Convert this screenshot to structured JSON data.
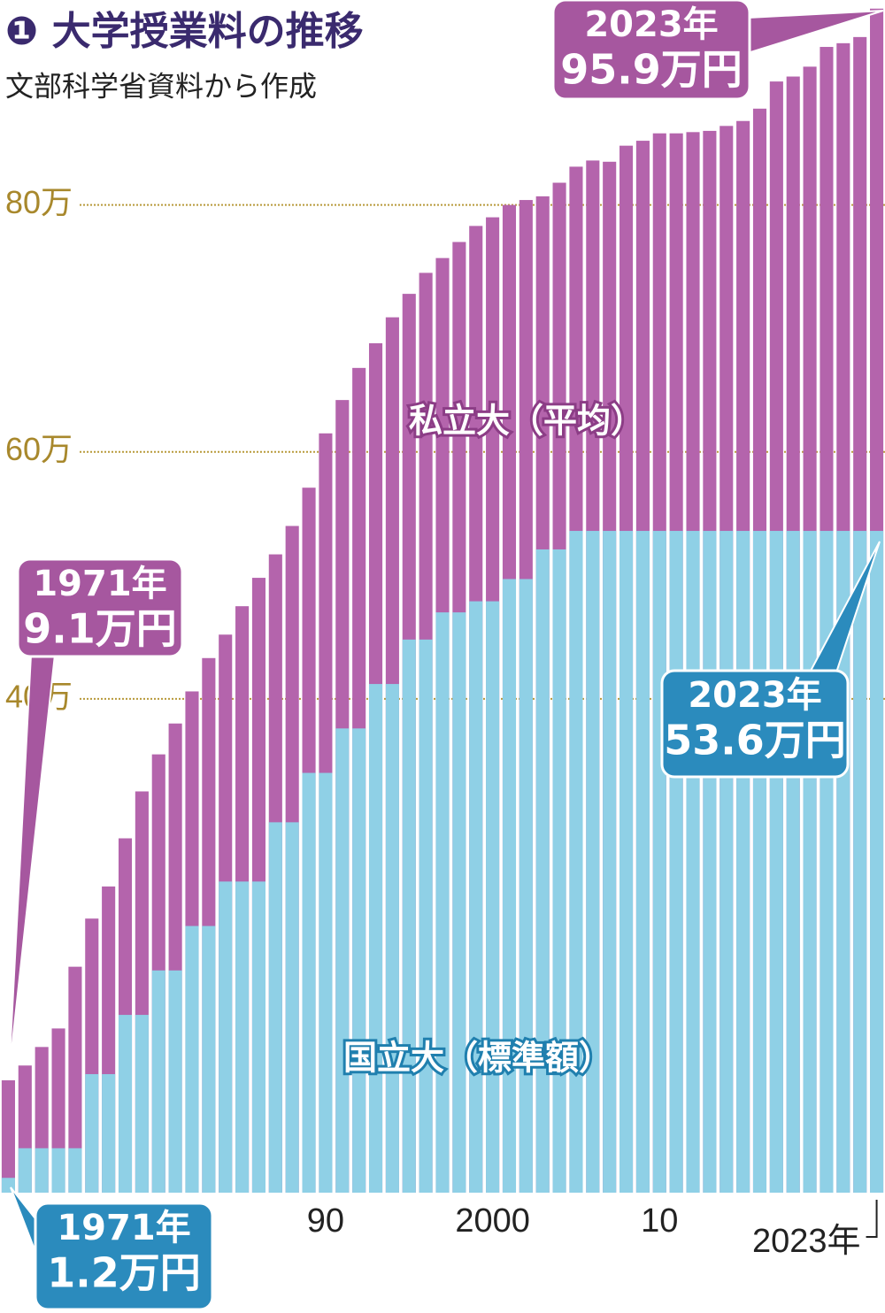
{
  "chart_data": {
    "type": "bar",
    "title": "❶ 大学授業料の推移",
    "subtitle": "文部科学省資料から作成",
    "x": [
      1971,
      1972,
      1973,
      1974,
      1975,
      1976,
      1977,
      1978,
      1979,
      1980,
      1981,
      1982,
      1983,
      1984,
      1985,
      1986,
      1987,
      1988,
      1989,
      1990,
      1991,
      1992,
      1993,
      1994,
      1995,
      1996,
      1997,
      1998,
      1999,
      2000,
      2001,
      2002,
      2003,
      2004,
      2005,
      2006,
      2007,
      2008,
      2009,
      2010,
      2011,
      2012,
      2013,
      2014,
      2015,
      2016,
      2017,
      2018,
      2019,
      2020,
      2021,
      2022,
      2023
    ],
    "series": [
      {
        "name": "私立大（平均）",
        "color": "#b464ac",
        "values": [
          9.1,
          10.3,
          11.8,
          13.3,
          18.3,
          22.2,
          24.8,
          28.7,
          32.5,
          35.5,
          38.0,
          40.6,
          43.3,
          45.2,
          47.5,
          49.8,
          51.7,
          54.0,
          57.1,
          61.5,
          64.2,
          66.8,
          68.8,
          70.9,
          72.8,
          74.5,
          75.7,
          77.0,
          78.3,
          79.0,
          80.0,
          80.4,
          80.7,
          81.8,
          83.1,
          83.6,
          83.5,
          84.8,
          85.2,
          85.8,
          85.8,
          85.9,
          86.0,
          86.4,
          86.8,
          87.8,
          90.0,
          90.4,
          91.2,
          92.8,
          93.1,
          93.6,
          95.9
        ]
      },
      {
        "name": "国立大（標準額）",
        "color": "#8fd0e6",
        "values": [
          1.2,
          3.6,
          3.6,
          3.6,
          3.6,
          9.6,
          9.6,
          14.4,
          14.4,
          18.0,
          18.0,
          21.6,
          21.6,
          25.2,
          25.2,
          25.2,
          30.0,
          30.0,
          34.0,
          34.0,
          37.6,
          37.6,
          41.2,
          41.2,
          44.8,
          44.8,
          47.0,
          47.0,
          47.9,
          47.9,
          49.7,
          49.7,
          52.1,
          52.1,
          53.6,
          53.6,
          53.6,
          53.6,
          53.6,
          53.6,
          53.6,
          53.6,
          53.6,
          53.6,
          53.6,
          53.6,
          53.6,
          53.6,
          53.6,
          53.6,
          53.6,
          53.6,
          53.6
        ]
      }
    ],
    "ylim": [
      0,
      96.6
    ],
    "yticks": [
      {
        "value": 40,
        "label": "40万"
      },
      {
        "value": 60,
        "label": "60万"
      },
      {
        "value": 80,
        "label": "80万"
      }
    ],
    "xlim": [
      1970.5,
      2023.5
    ],
    "xticks": [
      {
        "value": 1990,
        "label": "90"
      },
      {
        "value": 2000,
        "label": "2000"
      },
      {
        "value": 2010,
        "label": "10"
      },
      {
        "value": 2023,
        "label": "2023年"
      }
    ],
    "grid": true,
    "annotations": [
      {
        "lines": [
          "2023年",
          "95.9万円"
        ]
      },
      {
        "lines": [
          "1971年",
          "9.1万円"
        ]
      },
      {
        "lines": [
          "2023年",
          "53.6万円"
        ]
      },
      {
        "lines": [
          "1971年",
          "1.2万円"
        ]
      }
    ]
  }
}
